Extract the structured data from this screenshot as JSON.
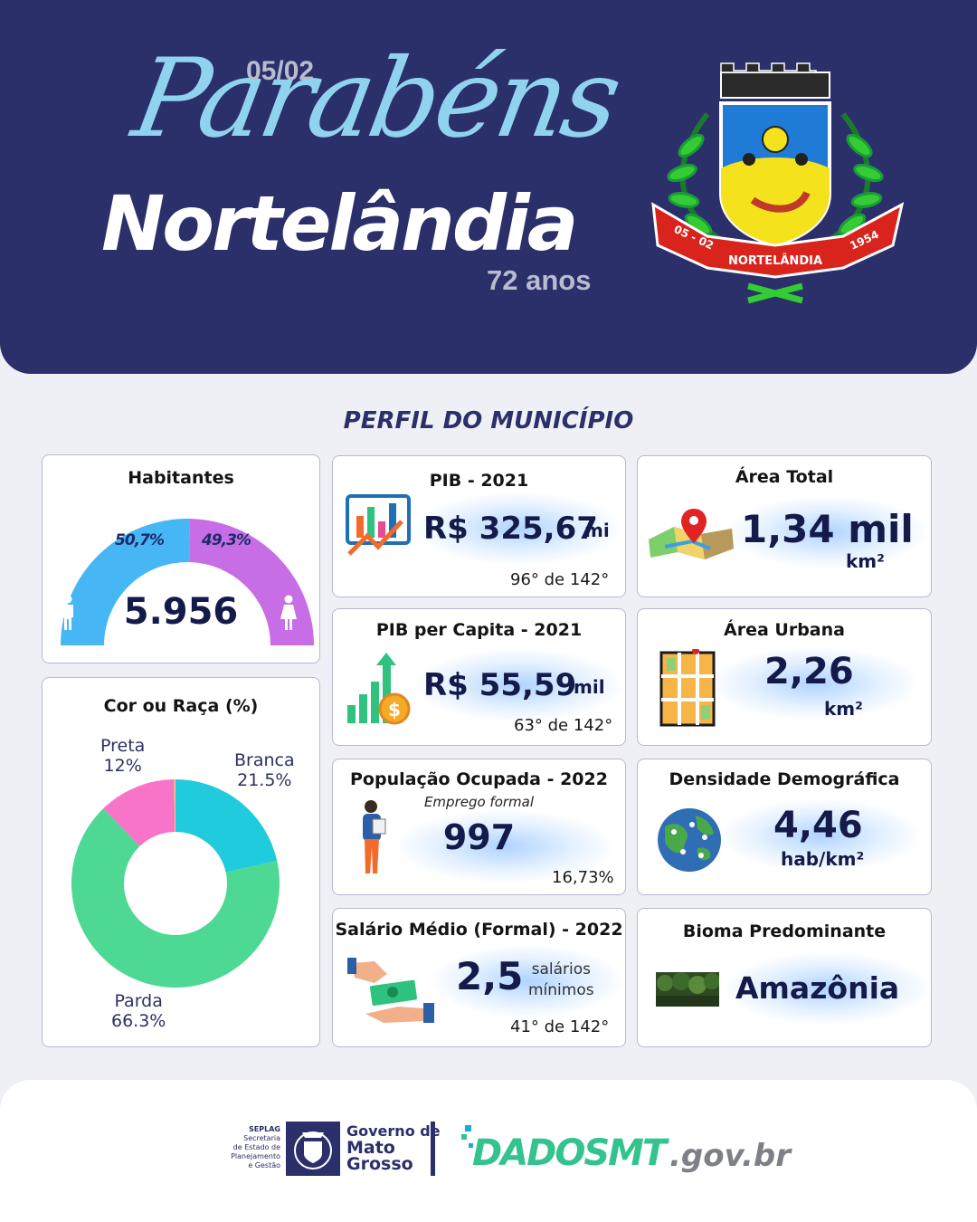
{
  "header": {
    "date": "05/02",
    "greeting": "Parabéns",
    "city": "Nortelândia",
    "age": "72 anos",
    "crest_banner": {
      "left": "05 - 02",
      "center": "NORTELÂNDIA",
      "right": "1954"
    }
  },
  "section_title": "PERFIL DO MUNICÍPIO",
  "habitantes": {
    "title": "Habitantes",
    "total": "5.956",
    "male_pct_label": "50,7%",
    "female_pct_label": "49,3%",
    "male_share": 50.7,
    "female_share": 49.3,
    "male_color": "#47b6f5",
    "female_color": "#c76ee6",
    "icons": [
      "male-icon",
      "female-icon"
    ]
  },
  "cor_raca": {
    "title": "Cor ou Raça (%)",
    "labels": [
      {
        "name": "Preta",
        "value": "12%"
      },
      {
        "name": "Branca",
        "value": "21.5%"
      },
      {
        "name": "Parda",
        "value": "66.3%"
      }
    ]
  },
  "chart_data": {
    "type": "pie",
    "title": "Cor ou Raça (%)",
    "categories": [
      "Branca",
      "Parda",
      "Preta",
      ""
    ],
    "values": [
      21.5,
      66.3,
      12,
      0.2
    ],
    "colors": [
      "#1fcbdc",
      "#4dd894",
      "#f874c8",
      "#f1d45a"
    ],
    "donut": true
  },
  "pib": {
    "title": "PIB - 2021",
    "value": "R$ 325,67",
    "unit": "mi",
    "rank": "96° de 142°",
    "icon": "bar-chart-growth-icon"
  },
  "pib_capita": {
    "title": "PIB per Capita - 2021",
    "value": "R$ 55,59",
    "unit": "mil",
    "rank": "63° de 142°",
    "icon": "coin-growth-icon"
  },
  "populacao": {
    "title": "População  Ocupada - 2022",
    "subtitle": "Emprego formal",
    "value": "997",
    "rank": "16,73%",
    "icon": "worker-icon"
  },
  "salario": {
    "title": "Salário Médio (Formal) - 2022",
    "value": "2,5",
    "unit_line1": "salários",
    "unit_line2": "mínimos",
    "rank": "41° de 142°",
    "icon": "money-hands-icon"
  },
  "area_total": {
    "title": "Área Total",
    "value": "1,34 mil",
    "unit": "km²",
    "icon": "map-pin-icon"
  },
  "area_urbana": {
    "title": "Área Urbana",
    "value": "2,26",
    "unit": "km²",
    "icon": "city-map-icon"
  },
  "densidade": {
    "title": "Densidade Demográfica",
    "value": "4,46",
    "unit": "hab/km²",
    "icon": "globe-people-icon"
  },
  "bioma": {
    "title": "Bioma Predominante",
    "value": "Amazônia",
    "icon": "forest-icon"
  },
  "footer": {
    "seplag_lines": [
      "SEPLAG",
      "Secretaria",
      "de Estado de",
      "Planejamento",
      "e Gestão"
    ],
    "gov_lines": [
      "Governo de",
      "Mato",
      "Grosso"
    ],
    "dados": "DADOSMT",
    "gov_br": ".gov.br"
  }
}
